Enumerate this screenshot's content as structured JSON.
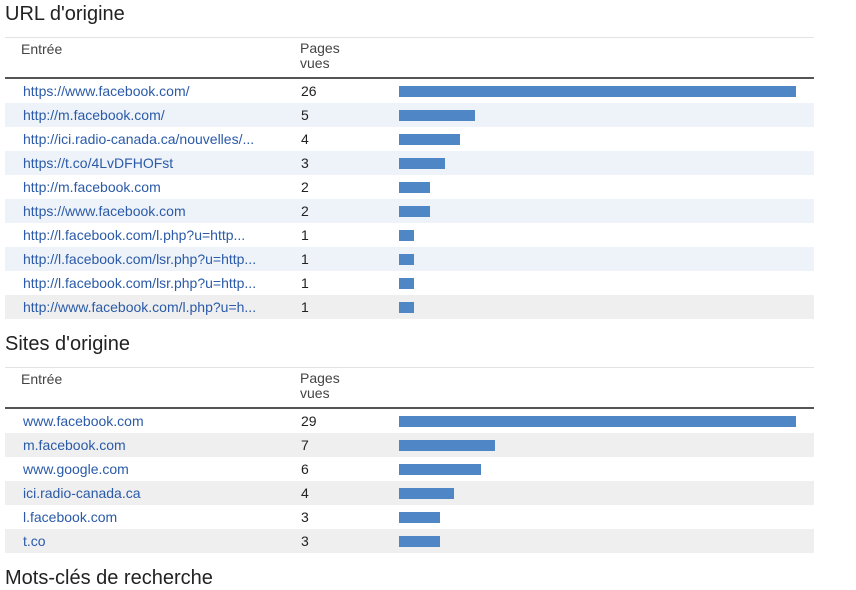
{
  "sections": [
    {
      "title": "URL d'origine",
      "header": {
        "entry": "Entrée",
        "pages_line1": "Pages",
        "pages_line2": "vues"
      },
      "max": 26,
      "rows": [
        {
          "entry": "https://www.facebook.com/",
          "count": 26
        },
        {
          "entry": "http://m.facebook.com/",
          "count": 5
        },
        {
          "entry": "http://ici.radio-canada.ca/nouvelles/...",
          "count": 4
        },
        {
          "entry": "https://t.co/4LvDFHOFst",
          "count": 3
        },
        {
          "entry": "http://m.facebook.com",
          "count": 2
        },
        {
          "entry": "https://www.facebook.com",
          "count": 2
        },
        {
          "entry": "http://l.facebook.com/l.php?u=http...",
          "count": 1
        },
        {
          "entry": "http://l.facebook.com/lsr.php?u=http...",
          "count": 1
        },
        {
          "entry": "http://l.facebook.com/lsr.php?u=http...",
          "count": 1
        },
        {
          "entry": "http://www.facebook.com/l.php?u=h...",
          "count": 1
        }
      ]
    },
    {
      "title": "Sites d'origine",
      "header": {
        "entry": "Entrée",
        "pages_line1": "Pages",
        "pages_line2": "vues"
      },
      "max": 29,
      "rows": [
        {
          "entry": "www.facebook.com",
          "count": 29
        },
        {
          "entry": "m.facebook.com",
          "count": 7
        },
        {
          "entry": "www.google.com",
          "count": 6
        },
        {
          "entry": "ici.radio-canada.ca",
          "count": 4
        },
        {
          "entry": "l.facebook.com",
          "count": 3
        },
        {
          "entry": "t.co",
          "count": 3
        }
      ]
    }
  ],
  "next_section_title": "Mots-clés de recherche",
  "colors": {
    "bar": "#4f86c6",
    "link": "#2a5aa8",
    "row_alt": "#eef3fa"
  }
}
